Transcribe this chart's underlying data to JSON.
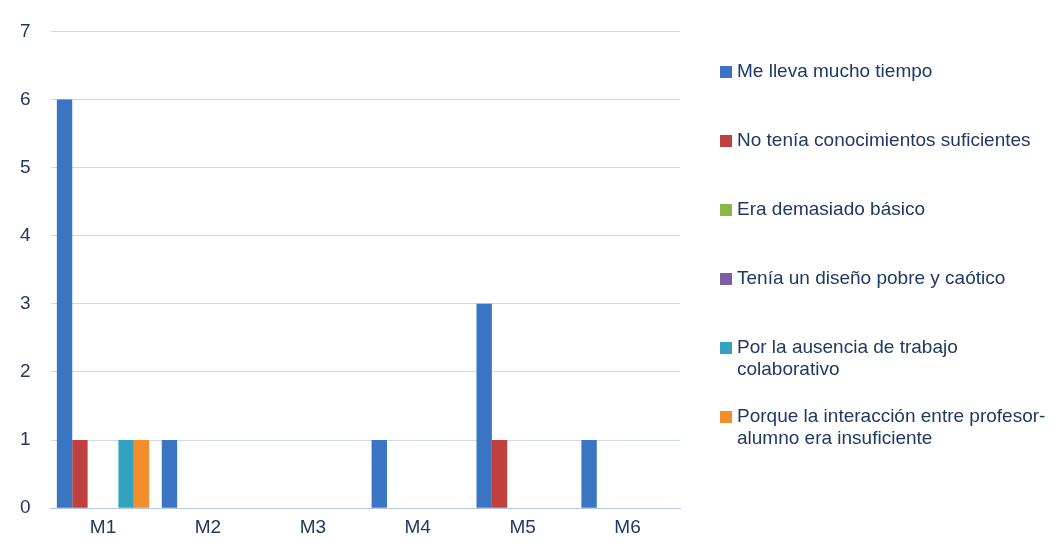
{
  "chart_data": {
    "type": "bar",
    "categories": [
      "M1",
      "M2",
      "M3",
      "M4",
      "M5",
      "M6"
    ],
    "series": [
      {
        "name": "Me lleva mucho tiempo",
        "color": "#3a75c4",
        "values": [
          6,
          1,
          0,
          1,
          3,
          1
        ]
      },
      {
        "name": "No tenía conocimientos suficientes",
        "color": "#c0403d",
        "values": [
          1,
          0,
          0,
          0,
          1,
          0
        ]
      },
      {
        "name": "Era demasiado básico",
        "color": "#8db64a",
        "values": [
          0,
          0,
          0,
          0,
          0,
          0
        ]
      },
      {
        "name": "Tenía un diseño pobre y caótico",
        "color": "#7d5fa6",
        "values": [
          0,
          0,
          0,
          0,
          0,
          0
        ]
      },
      {
        "name": "Por la ausencia de trabajo colaborativo",
        "color": "#31a3c1",
        "values": [
          1,
          0,
          0,
          0,
          0,
          0
        ]
      },
      {
        "name": "Porque la interacción entre profesor-alumno era insuficiente",
        "color": "#f28e2b",
        "values": [
          1,
          0,
          0,
          0,
          0,
          0
        ]
      }
    ],
    "ylim": [
      0,
      7
    ],
    "yticks": [
      0,
      1,
      2,
      3,
      4,
      5,
      6,
      7
    ],
    "grid": "y",
    "legend": "right"
  }
}
